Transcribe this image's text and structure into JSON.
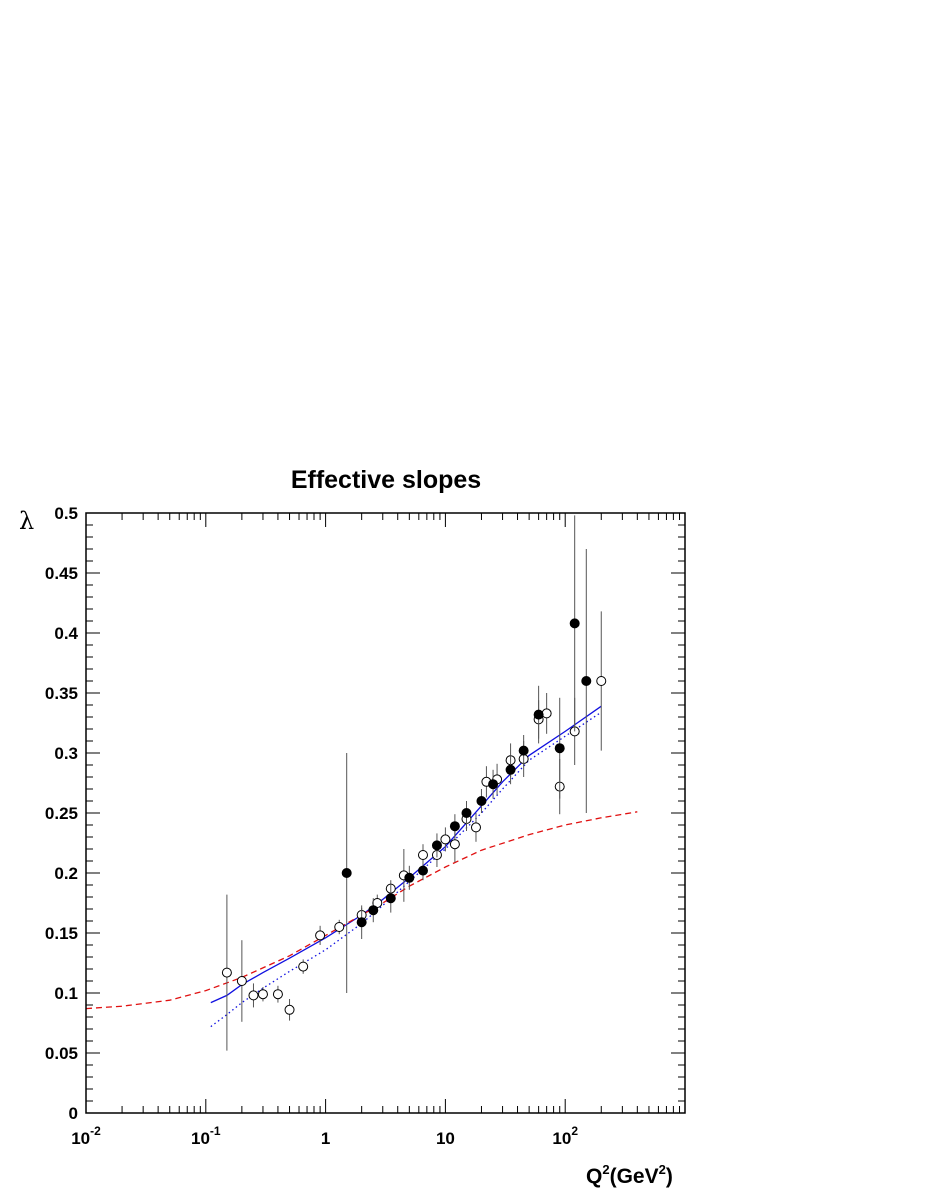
{
  "chart_data": {
    "type": "scatter",
    "title": "Effective slopes",
    "ylabel": "λ",
    "xlabel": {
      "base": "Q",
      "sup": "2",
      "mid": "(GeV",
      "sup2": "2",
      "end": ")"
    },
    "x_scale": "log",
    "xlim": [
      0.01,
      1000
    ],
    "ylim": [
      0,
      0.5
    ],
    "x_tick_labels": [
      {
        "value": 0.01,
        "base": "10",
        "exp": "-2"
      },
      {
        "value": 0.1,
        "base": "10",
        "exp": "-1"
      },
      {
        "value": 1,
        "base": "1",
        "exp": ""
      },
      {
        "value": 10,
        "base": "10",
        "exp": ""
      },
      {
        "value": 100,
        "base": "10",
        "exp": "2"
      }
    ],
    "y_ticks": [
      0,
      0.05,
      0.1,
      0.15,
      0.2,
      0.25,
      0.3,
      0.35,
      0.4,
      0.45,
      0.5
    ],
    "y_tick_labels": [
      "0",
      "0.05",
      "0.1",
      "0.15",
      "0.2",
      "0.25",
      "0.3",
      "0.35",
      "0.4",
      "0.45",
      "0.5"
    ],
    "series": [
      {
        "marker": "open-circle",
        "color": "#000000",
        "points": [
          {
            "x": 0.15,
            "y": 0.117,
            "err": 0.065
          },
          {
            "x": 0.2,
            "y": 0.11,
            "err": 0.034
          },
          {
            "x": 0.25,
            "y": 0.098,
            "err": 0.01
          },
          {
            "x": 0.3,
            "y": 0.099,
            "err": 0.006
          },
          {
            "x": 0.4,
            "y": 0.099,
            "err": 0.007
          },
          {
            "x": 0.5,
            "y": 0.086,
            "err": 0.009
          },
          {
            "x": 0.65,
            "y": 0.122,
            "err": 0.006
          },
          {
            "x": 0.9,
            "y": 0.148,
            "err": 0.008
          },
          {
            "x": 1.3,
            "y": 0.155,
            "err": 0.006
          },
          {
            "x": 2.0,
            "y": 0.165,
            "err": 0.006
          },
          {
            "x": 2.7,
            "y": 0.175,
            "err": 0.007
          },
          {
            "x": 3.5,
            "y": 0.187,
            "err": 0.007
          },
          {
            "x": 4.5,
            "y": 0.198,
            "err": 0.022
          },
          {
            "x": 6.5,
            "y": 0.215,
            "err": 0.009
          },
          {
            "x": 8.5,
            "y": 0.215,
            "err": 0.01
          },
          {
            "x": 10,
            "y": 0.228,
            "err": 0.01
          },
          {
            "x": 12,
            "y": 0.224,
            "err": 0.015
          },
          {
            "x": 15,
            "y": 0.245,
            "err": 0.01
          },
          {
            "x": 18,
            "y": 0.238,
            "err": 0.012
          },
          {
            "x": 22,
            "y": 0.276,
            "err": 0.013
          },
          {
            "x": 27,
            "y": 0.278,
            "err": 0.013
          },
          {
            "x": 35,
            "y": 0.294,
            "err": 0.014
          },
          {
            "x": 45,
            "y": 0.295,
            "err": 0.015
          },
          {
            "x": 60,
            "y": 0.328,
            "err": 0.016
          },
          {
            "x": 70,
            "y": 0.333,
            "err": 0.017
          },
          {
            "x": 90,
            "y": 0.272,
            "err": 0.023
          },
          {
            "x": 120,
            "y": 0.318,
            "err": 0.028
          },
          {
            "x": 200,
            "y": 0.36,
            "err": 0.058
          }
        ]
      },
      {
        "marker": "filled-circle",
        "color": "#000000",
        "points": [
          {
            "x": 1.5,
            "y": 0.2,
            "err": 0.1
          },
          {
            "x": 2.0,
            "y": 0.159,
            "err": 0.014
          },
          {
            "x": 2.5,
            "y": 0.169,
            "err": 0.01
          },
          {
            "x": 3.5,
            "y": 0.179,
            "err": 0.012
          },
          {
            "x": 5.0,
            "y": 0.196,
            "err": 0.01
          },
          {
            "x": 6.5,
            "y": 0.202,
            "err": 0.008
          },
          {
            "x": 8.5,
            "y": 0.223,
            "err": 0.01
          },
          {
            "x": 12,
            "y": 0.239,
            "err": 0.01
          },
          {
            "x": 15,
            "y": 0.25,
            "err": 0.01
          },
          {
            "x": 20,
            "y": 0.26,
            "err": 0.01
          },
          {
            "x": 25,
            "y": 0.274,
            "err": 0.012
          },
          {
            "x": 35,
            "y": 0.286,
            "err": 0.012
          },
          {
            "x": 45,
            "y": 0.302,
            "err": 0.013
          },
          {
            "x": 60,
            "y": 0.332,
            "err": 0.024
          },
          {
            "x": 90,
            "y": 0.304,
            "err": 0.042
          },
          {
            "x": 120,
            "y": 0.408,
            "err": 0.09
          },
          {
            "x": 150,
            "y": 0.36,
            "err": 0.11
          }
        ]
      }
    ],
    "curves": [
      {
        "style": "solid",
        "color": "#1010e0",
        "points": [
          [
            0.11,
            0.092
          ],
          [
            0.15,
            0.098
          ],
          [
            0.2,
            0.107
          ],
          [
            0.3,
            0.117
          ],
          [
            0.5,
            0.129
          ],
          [
            1,
            0.146
          ],
          [
            2,
            0.165
          ],
          [
            3,
            0.178
          ],
          [
            5,
            0.196
          ],
          [
            10,
            0.222
          ],
          [
            20,
            0.256
          ],
          [
            30,
            0.276
          ],
          [
            50,
            0.298
          ],
          [
            100,
            0.318
          ],
          [
            200,
            0.339
          ]
        ]
      },
      {
        "style": "dotted",
        "color": "#1010e0",
        "points": [
          [
            0.11,
            0.072
          ],
          [
            0.15,
            0.082
          ],
          [
            0.2,
            0.092
          ],
          [
            0.3,
            0.104
          ],
          [
            0.5,
            0.118
          ],
          [
            1,
            0.136
          ],
          [
            2,
            0.158
          ],
          [
            3,
            0.173
          ],
          [
            5,
            0.193
          ],
          [
            10,
            0.22
          ],
          [
            20,
            0.25
          ],
          [
            30,
            0.27
          ],
          [
            50,
            0.294
          ],
          [
            100,
            0.314
          ],
          [
            200,
            0.334
          ]
        ]
      },
      {
        "style": "dashed",
        "color": "#e01010",
        "points": [
          [
            0.01,
            0.087
          ],
          [
            0.02,
            0.089
          ],
          [
            0.05,
            0.094
          ],
          [
            0.1,
            0.102
          ],
          [
            0.2,
            0.113
          ],
          [
            0.5,
            0.131
          ],
          [
            1,
            0.148
          ],
          [
            2,
            0.165
          ],
          [
            3,
            0.175
          ],
          [
            5,
            0.189
          ],
          [
            10,
            0.205
          ],
          [
            20,
            0.219
          ],
          [
            50,
            0.232
          ],
          [
            100,
            0.24
          ],
          [
            200,
            0.246
          ],
          [
            400,
            0.251
          ]
        ]
      }
    ]
  }
}
